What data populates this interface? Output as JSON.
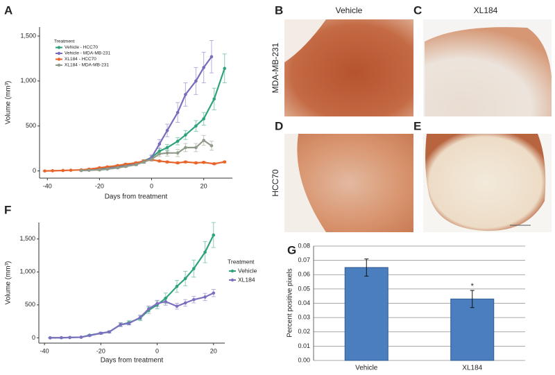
{
  "chart_data": [
    {
      "type": "line",
      "panel": "A",
      "x_label": "Days from treatment",
      "y_label": "Volume (mm³)",
      "legend_title": "Treatment",
      "legend": "top-left",
      "xlim": [
        -43,
        31
      ],
      "ylim": [
        -80,
        1600
      ],
      "xticks": [
        -40,
        -20,
        0,
        20
      ],
      "yticks": [
        0,
        500,
        {
          "value": 1000,
          "label": "1,000"
        },
        {
          "value": 1500,
          "label": "1,500"
        }
      ],
      "series": [
        {
          "name": "Vehicle - HCC70",
          "color": "#2ea27a",
          "x": [
            -27,
            -24,
            -20,
            -17,
            -13,
            -10,
            -6,
            -3,
            0,
            3,
            6,
            10,
            13,
            17,
            20,
            24,
            28
          ],
          "values": [
            10,
            15,
            20,
            30,
            45,
            60,
            80,
            110,
            150,
            220,
            260,
            330,
            400,
            500,
            580,
            800,
            1140
          ],
          "errors": [
            5,
            5,
            8,
            8,
            10,
            10,
            12,
            15,
            20,
            30,
            35,
            40,
            50,
            60,
            70,
            120,
            160
          ]
        },
        {
          "name": "Vehicle - MDA-MB-231",
          "color": "#7b6bbd",
          "x": [
            -27,
            -24,
            -20,
            -17,
            -13,
            -10,
            -6,
            -3,
            0,
            3,
            6,
            10,
            13,
            17,
            20,
            23
          ],
          "values": [
            5,
            10,
            15,
            25,
            40,
            55,
            75,
            100,
            150,
            300,
            450,
            650,
            850,
            1000,
            1150,
            1270
          ],
          "errors": [
            5,
            5,
            8,
            8,
            10,
            10,
            12,
            15,
            30,
            50,
            70,
            110,
            130,
            150,
            170,
            180
          ]
        },
        {
          "name": "XL184 - HCC70",
          "color": "#e8642a",
          "x": [
            -41,
            -38,
            -34,
            -31,
            -27,
            -24,
            -20,
            -17,
            -13,
            -10,
            -6,
            -3,
            0,
            3,
            6,
            10,
            13,
            17,
            20,
            24,
            28
          ],
          "values": [
            0,
            2,
            5,
            8,
            12,
            20,
            35,
            45,
            60,
            75,
            90,
            110,
            125,
            110,
            100,
            90,
            100,
            90,
            95,
            80,
            100
          ],
          "errors": [
            2,
            2,
            3,
            3,
            4,
            5,
            6,
            7,
            8,
            9,
            10,
            10,
            12,
            10,
            10,
            10,
            10,
            10,
            10,
            10,
            10
          ]
        },
        {
          "name": "XL184 - MDA-MB-231",
          "color": "#8f9a88",
          "x": [
            -27,
            -24,
            -20,
            -17,
            -13,
            -10,
            -6,
            -3,
            0,
            3,
            6,
            10,
            13,
            17,
            20,
            23
          ],
          "values": [
            5,
            8,
            12,
            20,
            35,
            50,
            70,
            100,
            130,
            190,
            200,
            200,
            260,
            260,
            340,
            280
          ],
          "errors": [
            3,
            4,
            5,
            6,
            8,
            10,
            12,
            15,
            20,
            30,
            35,
            40,
            45,
            45,
            55,
            50
          ]
        }
      ]
    },
    {
      "type": "line",
      "panel": "F",
      "x_label": "Days from treatment",
      "y_label": "Volume (mm³)",
      "legend_title": "Treatment",
      "legend": "right",
      "xlim": [
        -42,
        24
      ],
      "ylim": [
        -80,
        1750
      ],
      "xticks": [
        -40,
        -20,
        0,
        20
      ],
      "yticks": [
        0,
        500,
        {
          "value": 1000,
          "label": "1,000"
        },
        {
          "value": 1500,
          "label": "1,500"
        }
      ],
      "series": [
        {
          "name": "Vehicle",
          "color": "#2ea27a",
          "x": [
            -38,
            -34,
            -31,
            -27,
            -24,
            -20,
            -17,
            -13,
            -10,
            -6,
            -3,
            0,
            3,
            7,
            10,
            13,
            17,
            20
          ],
          "values": [
            0,
            2,
            5,
            10,
            40,
            70,
            90,
            200,
            230,
            300,
            420,
            500,
            600,
            780,
            900,
            1050,
            1300,
            1560
          ],
          "errors": [
            2,
            2,
            3,
            5,
            10,
            15,
            15,
            30,
            30,
            40,
            50,
            60,
            80,
            90,
            110,
            130,
            160,
            190
          ]
        },
        {
          "name": "XL184",
          "color": "#7d6fc0",
          "x": [
            -38,
            -34,
            -31,
            -27,
            -24,
            -20,
            -17,
            -13,
            -10,
            -6,
            -3,
            0,
            3,
            7,
            10,
            13,
            17,
            20
          ],
          "values": [
            0,
            2,
            5,
            10,
            35,
            70,
            90,
            200,
            220,
            310,
            440,
            520,
            550,
            480,
            530,
            580,
            620,
            680
          ],
          "errors": [
            2,
            2,
            3,
            5,
            10,
            15,
            15,
            25,
            25,
            35,
            45,
            50,
            55,
            45,
            50,
            50,
            55,
            55
          ]
        }
      ]
    },
    {
      "type": "bar",
      "panel": "G",
      "y_label": "Percent positive pixels",
      "categories": [
        "Vehicle",
        "XL184"
      ],
      "values": [
        0.065,
        0.043
      ],
      "errors": [
        0.006,
        0.006
      ],
      "value_labels": [
        null,
        "*"
      ],
      "color": "#4a7ebf",
      "grid": true,
      "ylim": [
        0,
        0.08
      ],
      "yticks": [
        {
          "value": 0,
          "label": "0.00"
        },
        {
          "value": 0.01,
          "label": "0.01"
        },
        {
          "value": 0.02,
          "label": "0.02"
        },
        {
          "value": 0.03,
          "label": "0.03"
        },
        {
          "value": 0.04,
          "label": "0.04"
        },
        {
          "value": 0.05,
          "label": "0.05"
        },
        {
          "value": 0.06,
          "label": "0.06"
        },
        {
          "value": 0.07,
          "label": "0.07"
        },
        {
          "value": 0.08,
          "label": "0.08"
        }
      ]
    }
  ],
  "image_panels": {
    "letters": [
      "B",
      "C",
      "D",
      "E"
    ],
    "columns": [
      "Vehicle",
      "XL184"
    ],
    "rows": [
      "MDA-MB-231",
      "HCC70"
    ]
  }
}
